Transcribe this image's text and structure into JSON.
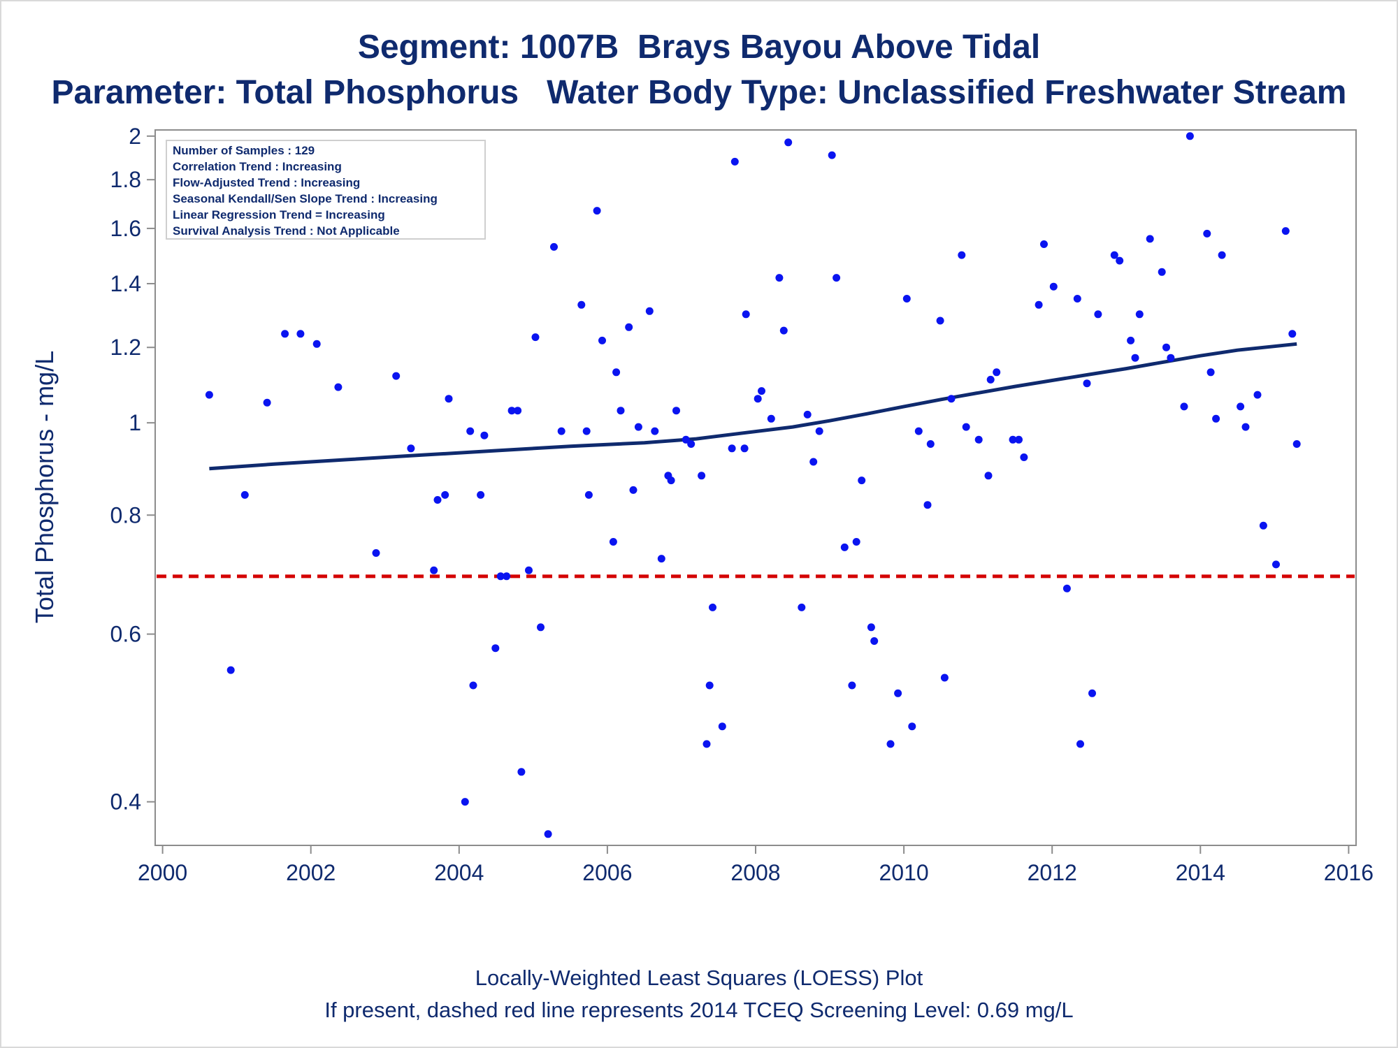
{
  "title": "Segment: 1007B  Brays Bayou Above Tidal",
  "subtitle": "Parameter: Total Phosphorus   Water Body Type: Unclassified Freshwater Stream",
  "footnotes": [
    "Locally-Weighted Least Squares (LOESS) Plot",
    "If present, dashed red line represents 2014 TCEQ Screening Level: 0.69 mg/L"
  ],
  "stats_box": [
    "Number of Samples : 129",
    "Correlation Trend : Increasing",
    "Flow-Adjusted Trend : Increasing",
    "Seasonal Kendall/Sen Slope Trend : Increasing",
    "Linear Regression Trend = Increasing",
    "Survival Analysis Trend : Not Applicable"
  ],
  "colors": {
    "text": "#0f2a6e",
    "points": "#0a14f0",
    "trend_line": "#0f2a6e",
    "screening_line": "#d40000",
    "axis": "#8c8c8c"
  },
  "chart_data": {
    "type": "scatter",
    "xlabel": "",
    "ylabel": "Total Phosphorus - mg/L",
    "xlim": [
      1999.9,
      2016.1
    ],
    "ylim": [
      0.36,
      2.03
    ],
    "y_scale": "log",
    "xticks": [
      2000,
      2002,
      2004,
      2006,
      2008,
      2010,
      2012,
      2014,
      2016
    ],
    "yticks": [
      {
        "value": 0.4,
        "label": "0.4"
      },
      {
        "value": 0.6,
        "label": "0.6"
      },
      {
        "value": 0.8,
        "label": "0.8"
      },
      {
        "value": 1.0,
        "label": "1"
      },
      {
        "value": 1.2,
        "label": "1.2"
      },
      {
        "value": 1.4,
        "label": "1.4"
      },
      {
        "value": 1.6,
        "label": "1.6"
      },
      {
        "value": 1.8,
        "label": "1.8"
      },
      {
        "value": 2.0,
        "label": "2"
      }
    ],
    "grid": false,
    "screening_level": 0.69,
    "points": [
      [
        2000.63,
        1.07
      ],
      [
        2000.92,
        0.55
      ],
      [
        2001.11,
        0.84
      ],
      [
        2001.41,
        1.05
      ],
      [
        2001.65,
        1.24
      ],
      [
        2001.86,
        1.24
      ],
      [
        2002.08,
        1.21
      ],
      [
        2002.37,
        1.09
      ],
      [
        2002.88,
        0.73
      ],
      [
        2003.15,
        1.12
      ],
      [
        2003.35,
        0.94
      ],
      [
        2003.66,
        0.7
      ],
      [
        2003.71,
        0.83
      ],
      [
        2003.81,
        0.84
      ],
      [
        2003.86,
        1.06
      ],
      [
        2004.08,
        0.4
      ],
      [
        2004.15,
        0.98
      ],
      [
        2004.19,
        0.53
      ],
      [
        2004.29,
        0.84
      ],
      [
        2004.34,
        0.97
      ],
      [
        2004.49,
        0.58
      ],
      [
        2004.56,
        0.69
      ],
      [
        2004.64,
        0.69
      ],
      [
        2004.71,
        1.03
      ],
      [
        2004.79,
        1.03
      ],
      [
        2004.84,
        0.43
      ],
      [
        2004.94,
        0.7
      ],
      [
        2005.03,
        1.23
      ],
      [
        2005.1,
        0.61
      ],
      [
        2005.2,
        0.37
      ],
      [
        2005.28,
        1.53
      ],
      [
        2005.38,
        0.98
      ],
      [
        2005.65,
        1.33
      ],
      [
        2005.72,
        0.98
      ],
      [
        2005.75,
        0.84
      ],
      [
        2005.86,
        1.67
      ],
      [
        2005.93,
        1.22
      ],
      [
        2006.08,
        0.75
      ],
      [
        2006.12,
        1.13
      ],
      [
        2006.18,
        1.03
      ],
      [
        2006.29,
        1.26
      ],
      [
        2006.35,
        0.85
      ],
      [
        2006.42,
        0.99
      ],
      [
        2006.57,
        1.31
      ],
      [
        2006.64,
        0.98
      ],
      [
        2006.73,
        0.72
      ],
      [
        2006.82,
        0.88
      ],
      [
        2006.86,
        0.87
      ],
      [
        2006.93,
        1.03
      ],
      [
        2007.06,
        0.96
      ],
      [
        2007.13,
        0.95
      ],
      [
        2007.27,
        0.88
      ],
      [
        2007.34,
        0.46
      ],
      [
        2007.38,
        0.53
      ],
      [
        2007.42,
        0.64
      ],
      [
        2007.55,
        0.48
      ],
      [
        2007.68,
        0.94
      ],
      [
        2007.72,
        1.88
      ],
      [
        2007.85,
        0.94
      ],
      [
        2007.87,
        1.3
      ],
      [
        2008.03,
        1.06
      ],
      [
        2008.08,
        1.08
      ],
      [
        2008.21,
        1.01
      ],
      [
        2008.32,
        1.42
      ],
      [
        2008.38,
        1.25
      ],
      [
        2008.44,
        1.97
      ],
      [
        2008.62,
        0.64
      ],
      [
        2008.7,
        1.02
      ],
      [
        2008.78,
        0.91
      ],
      [
        2008.86,
        0.98
      ],
      [
        2009.03,
        1.91
      ],
      [
        2009.09,
        1.42
      ],
      [
        2009.2,
        0.74
      ],
      [
        2009.3,
        0.53
      ],
      [
        2009.36,
        0.75
      ],
      [
        2009.43,
        0.87
      ],
      [
        2009.56,
        0.61
      ],
      [
        2009.6,
        0.59
      ],
      [
        2009.82,
        0.46
      ],
      [
        2009.92,
        0.52
      ],
      [
        2010.04,
        1.35
      ],
      [
        2010.11,
        0.48
      ],
      [
        2010.2,
        0.98
      ],
      [
        2010.32,
        0.82
      ],
      [
        2010.36,
        0.95
      ],
      [
        2010.49,
        1.28
      ],
      [
        2010.55,
        0.54
      ],
      [
        2010.64,
        1.06
      ],
      [
        2010.78,
        1.5
      ],
      [
        2010.84,
        0.99
      ],
      [
        2011.01,
        0.96
      ],
      [
        2011.14,
        0.88
      ],
      [
        2011.17,
        1.11
      ],
      [
        2011.25,
        1.13
      ],
      [
        2011.47,
        0.96
      ],
      [
        2011.55,
        0.96
      ],
      [
        2011.62,
        0.92
      ],
      [
        2011.82,
        1.33
      ],
      [
        2011.89,
        1.54
      ],
      [
        2012.02,
        1.39
      ],
      [
        2012.2,
        0.67
      ],
      [
        2012.34,
        1.35
      ],
      [
        2012.38,
        0.46
      ],
      [
        2012.47,
        1.1
      ],
      [
        2012.54,
        0.52
      ],
      [
        2012.62,
        1.3
      ],
      [
        2012.84,
        1.5
      ],
      [
        2012.91,
        1.48
      ],
      [
        2013.06,
        1.22
      ],
      [
        2013.12,
        1.17
      ],
      [
        2013.18,
        1.3
      ],
      [
        2013.32,
        1.56
      ],
      [
        2013.48,
        1.44
      ],
      [
        2013.54,
        1.2
      ],
      [
        2013.6,
        1.17
      ],
      [
        2013.78,
        1.04
      ],
      [
        2013.86,
        2.0
      ],
      [
        2014.09,
        1.58
      ],
      [
        2014.14,
        1.13
      ],
      [
        2014.21,
        1.01
      ],
      [
        2014.29,
        1.5
      ],
      [
        2014.54,
        1.04
      ],
      [
        2014.61,
        0.99
      ],
      [
        2014.77,
        1.07
      ],
      [
        2014.85,
        0.78
      ],
      [
        2015.02,
        0.71
      ],
      [
        2015.15,
        1.59
      ],
      [
        2015.24,
        1.24
      ],
      [
        2015.3,
        0.95
      ]
    ],
    "loess": [
      [
        2000.63,
        0.895
      ],
      [
        2001.5,
        0.905
      ],
      [
        2002.5,
        0.915
      ],
      [
        2003.5,
        0.925
      ],
      [
        2004.5,
        0.935
      ],
      [
        2005.5,
        0.945
      ],
      [
        2006.5,
        0.953
      ],
      [
        2007.2,
        0.962
      ],
      [
        2007.8,
        0.975
      ],
      [
        2008.5,
        0.99
      ],
      [
        2009.0,
        1.005
      ],
      [
        2009.5,
        1.022
      ],
      [
        2010.0,
        1.04
      ],
      [
        2010.5,
        1.058
      ],
      [
        2011.0,
        1.075
      ],
      [
        2011.5,
        1.092
      ],
      [
        2012.0,
        1.108
      ],
      [
        2012.5,
        1.124
      ],
      [
        2013.0,
        1.14
      ],
      [
        2013.5,
        1.158
      ],
      [
        2014.0,
        1.176
      ],
      [
        2014.5,
        1.192
      ],
      [
        2015.3,
        1.21
      ]
    ]
  }
}
